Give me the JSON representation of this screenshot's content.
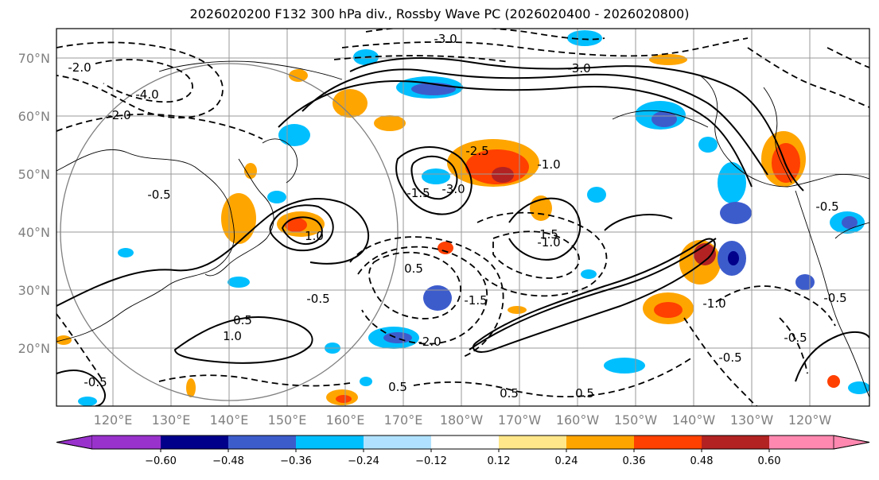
{
  "title": "2026020200 F132 300 hPa div., Rossby Wave PC (2026020400 - 2026020800)",
  "map": {
    "lat_labels": [
      "70°N",
      "60°N",
      "50°N",
      "40°N",
      "30°N",
      "20°N"
    ],
    "lon_labels": [
      "120°E",
      "130°E",
      "140°E",
      "150°E",
      "160°E",
      "170°E",
      "180°W",
      "170°W",
      "160°W",
      "150°W",
      "140°W",
      "130°W",
      "120°W"
    ],
    "contour_labels": [
      "-3.0",
      "-3.0",
      "-4.0",
      "-2.0",
      "-2.0",
      "-0.5",
      "-0.5",
      "-1.5",
      "-1.0",
      "-1.0",
      "-1.5",
      "-2.0",
      "-0.5",
      "-0.5",
      "-0.5",
      "-0.5",
      "-0.5",
      "0.5",
      "0.5",
      "0.5",
      "1.0",
      "1.0",
      "1.5",
      "0.5",
      "-3.0",
      "-2.5",
      "-1.0",
      "0.5"
    ],
    "colors": {
      "frame": "#000000",
      "grid": "#9a9a9a",
      "coast": "#000000"
    }
  },
  "colorbar": {
    "ticks": [
      "−0.60",
      "−0.48",
      "−0.36",
      "−0.24",
      "−0.12",
      "0.12",
      "0.24",
      "0.36",
      "0.48",
      "0.60"
    ],
    "colors": [
      "#9932cc",
      "#00008b",
      "#3d5ccc",
      "#00bfff",
      "#b0e2ff",
      "#ffffff",
      "#ffe78a",
      "#ffa500",
      "#ff4000",
      "#b22222",
      "#ff88b0"
    ]
  }
}
